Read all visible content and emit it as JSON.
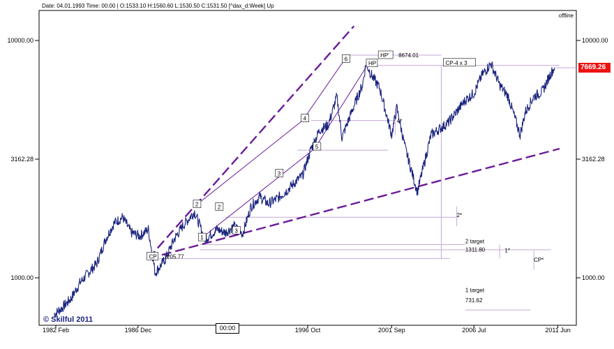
{
  "header": {
    "info": "Date: 04.01.1993 Time: 00:00 | O:1533.10 H:1560.60 L:1530.50 C:1531.50  [^dax_d:Week] Up",
    "status": "offline"
  },
  "current_price": "7669.26",
  "time_marker": "00:00",
  "watermark": "© Skilful 2011",
  "colors": {
    "price": "#1a237e",
    "trend": "#6a1b9a",
    "annot": "#c7a8d8",
    "current": "#e11111"
  },
  "chart_data": {
    "type": "line",
    "title": "",
    "scale": "log",
    "ylim": [
      700,
      14000
    ],
    "y_ticks_left": [
      "10000.00",
      "3162.28",
      "1000.00"
    ],
    "y_ticks_right": [
      "10000.00",
      "3162.28",
      "1000.00"
    ],
    "x_ticks": [
      "1982 Feb",
      "1986 Dec",
      "1996 Oct",
      "2001 Sep",
      "2006 Jul",
      "2011 Jun"
    ],
    "series": [
      {
        "x": [
          1982.0,
          1982.5,
          1983.0,
          1983.5,
          1984.0,
          1984.5,
          1985.0,
          1985.5,
          1986.0,
          1986.5,
          1987.0,
          1987.5,
          1987.9,
          1988.5,
          1989.0,
          1989.5,
          1990.2,
          1990.8,
          1991.5,
          1992.0,
          1992.5,
          1993.0,
          1993.5,
          1994.0,
          1994.5,
          1995.0,
          1995.5,
          1996.0,
          1996.5,
          1997.0,
          1997.5,
          1998.0,
          1998.5,
          1998.8,
          1999.5,
          2000.0,
          2000.2,
          2000.5,
          2001.0,
          2001.7,
          2002.0,
          2002.5,
          2003.2,
          2004.0,
          2005.0,
          2006.0,
          2006.5,
          2007.0,
          2007.5,
          2008.0,
          2008.5,
          2009.2,
          2009.5,
          2010.0,
          2010.5,
          2011.0,
          2011.2
        ],
        "y": [
          700,
          750,
          820,
          950,
          1050,
          1150,
          1450,
          1700,
          1800,
          1550,
          1500,
          1600,
          1050,
          1200,
          1450,
          1650,
          1900,
          1450,
          1600,
          1550,
          1650,
          1531.5,
          2000,
          2200,
          2050,
          2150,
          2300,
          2500,
          2700,
          3500,
          4200,
          4400,
          5800,
          3900,
          5300,
          6500,
          8000,
          7200,
          6300,
          4000,
          5200,
          3500,
          2300,
          4000,
          4500,
          5600,
          6000,
          7200,
          8000,
          6500,
          5800,
          4000,
          5000,
          5800,
          6100,
          7300,
          7669.26
        ]
      }
    ],
    "trendlines": [
      {
        "name": "upper",
        "from": [
          1987.5,
          1205.77
        ],
        "to": [
          1999.5,
          11500
        ]
      },
      {
        "name": "lower",
        "from": [
          1987.5,
          1205.77
        ],
        "to": [
          2011.5,
          3500
        ]
      }
    ],
    "wave_labels": [
      {
        "text": "CP",
        "x": 1987.5,
        "y": 1205.77,
        "note": "1205.77"
      },
      {
        "text": "1",
        "x": 1990.5,
        "y": 1450
      },
      {
        "text": "2",
        "x": 1990.2,
        "y": 2000
      },
      {
        "text": "2",
        "x": 1991.5,
        "y": 1950
      },
      {
        "text": "3",
        "x": 1992.5,
        "y": 1550
      },
      {
        "text": "3",
        "x": 1995.0,
        "y": 2700
      },
      {
        "text": "4",
        "x": 1996.5,
        "y": 4600
      },
      {
        "text": "5",
        "x": 1997.2,
        "y": 3500
      },
      {
        "text": "6",
        "x": 1998.9,
        "y": 8200
      },
      {
        "text": "HP",
        "x": 2000.3,
        "y": 7850
      },
      {
        "text": "HP'",
        "x": 2001.0,
        "y": 8500,
        "note": "8674.01"
      },
      {
        "text": "CP-4 x 3",
        "x": 2004.8,
        "y": 7900
      }
    ],
    "annotations": [
      {
        "text": "4*",
        "x": 2002.0,
        "y": 4500
      },
      {
        "text": "2*",
        "x": 2005.5,
        "y": 1800
      },
      {
        "text": "1*",
        "x": 2008.3,
        "y": 1280
      },
      {
        "text": "CP*",
        "x": 2010.0,
        "y": 1170
      },
      {
        "text": "2 target",
        "x": 2006.0,
        "y": 1400
      },
      {
        "text": "1311.80",
        "x": 2006.0,
        "y": 1290
      },
      {
        "text": "1 target",
        "x": 2006.0,
        "y": 870
      },
      {
        "text": "731.62",
        "x": 2006.0,
        "y": 790
      }
    ]
  }
}
